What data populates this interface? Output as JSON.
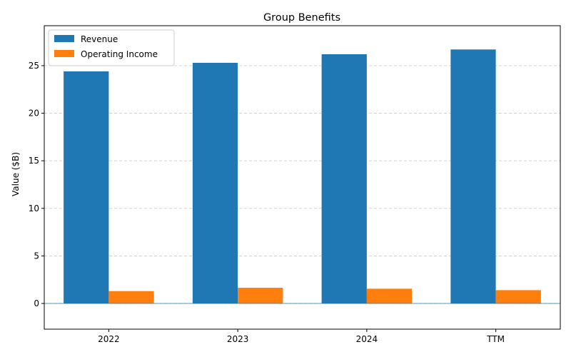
{
  "chart_data": {
    "type": "bar",
    "title": "Group Benefits",
    "xlabel": "",
    "ylabel": "Value ($B)",
    "categories": [
      "2022",
      "2023",
      "2024",
      "TTM"
    ],
    "series": [
      {
        "name": "Revenue",
        "color": "#1f77b4",
        "values": [
          24.4,
          25.3,
          26.2,
          26.7
        ]
      },
      {
        "name": "Operating Income",
        "color": "#ff7f0e",
        "values": [
          1.3,
          1.65,
          1.55,
          1.4
        ]
      }
    ],
    "ylim": [
      -2.7,
      29.2
    ],
    "yticks": [
      0,
      5,
      10,
      15,
      20,
      25
    ],
    "grid": true,
    "legend_position": "top-left",
    "zero_line_color": "#1f77b4"
  }
}
